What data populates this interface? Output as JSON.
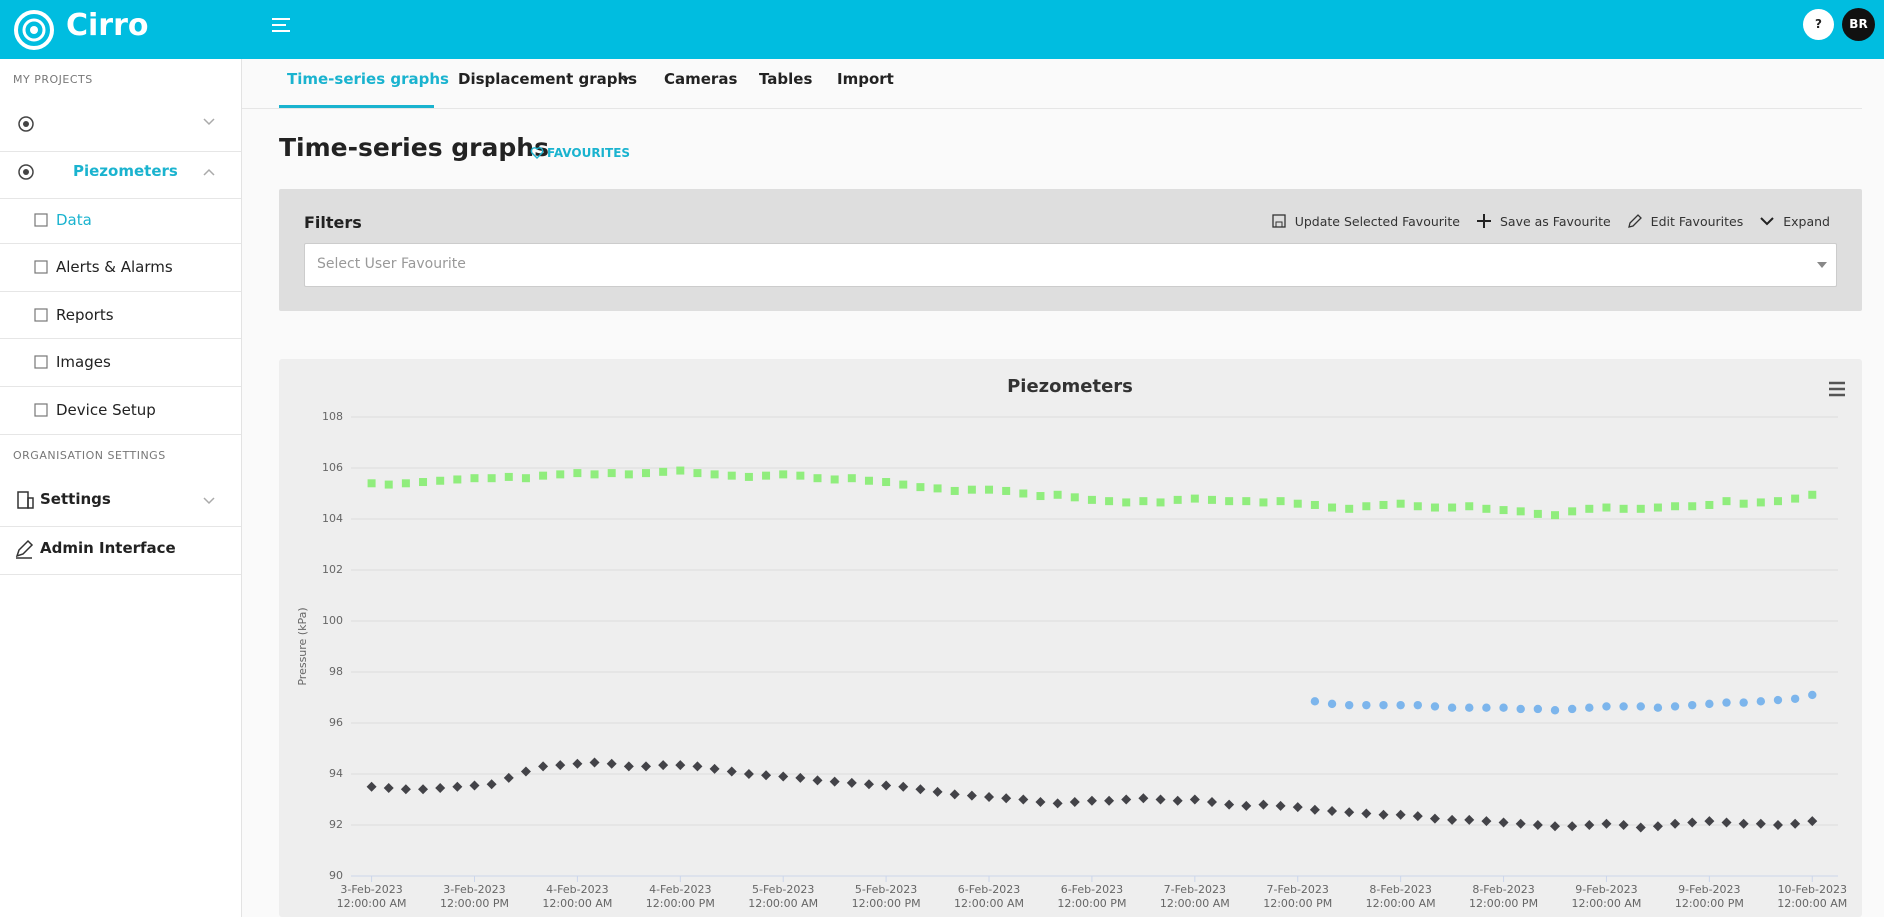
{
  "header": {
    "brand": "Cirro",
    "help": "?",
    "avatar": "BR"
  },
  "sidebar": {
    "projects_heading": "MY PROJECTS",
    "project": "Piezometers",
    "project_items": [
      "Data",
      "Alerts & Alarms",
      "Reports",
      "Images",
      "Device Setup"
    ],
    "org_heading": "ORGANISATION SETTINGS",
    "org_items": [
      "Settings",
      "Admin Interface"
    ]
  },
  "tabs": [
    "Time-series graphs",
    "Displacement graphs",
    "Cameras",
    "Tables",
    "Import"
  ],
  "page": {
    "title": "Time-series graphs",
    "favourites": "FAVOURITES"
  },
  "filters": {
    "title": "Filters",
    "actions": [
      "Update Selected Favourite",
      "Save as Favourite",
      "Edit Favourites",
      "Expand"
    ],
    "placeholder": "Select User Favourite"
  },
  "chart_data": {
    "type": "scatter",
    "title": "Piezometers",
    "y_label": "Pressure (kPa)",
    "xlim": [
      "2023-02-02T21:36",
      "2023-02-10T03:00"
    ],
    "xticks": [
      {
        "value": "2023-02-03T00:00",
        "label": "3-Feb-2023 12:00:00 AM"
      },
      {
        "value": "2023-02-03T12:00",
        "label": "3-Feb-2023 12:00:00 PM"
      },
      {
        "value": "2023-02-04T00:00",
        "label": "4-Feb-2023 12:00:00 AM"
      },
      {
        "value": "2023-02-04T12:00",
        "label": "4-Feb-2023 12:00:00 PM"
      },
      {
        "value": "2023-02-05T00:00",
        "label": "5-Feb-2023 12:00:00 AM"
      },
      {
        "value": "2023-02-05T12:00",
        "label": "5-Feb-2023 12:00:00 PM"
      },
      {
        "value": "2023-02-06T00:00",
        "label": "6-Feb-2023 12:00:00 AM"
      },
      {
        "value": "2023-02-06T12:00",
        "label": "6-Feb-2023 12:00:00 PM"
      },
      {
        "value": "2023-02-07T00:00",
        "label": "7-Feb-2023 12:00:00 AM"
      },
      {
        "value": "2023-02-07T12:00",
        "label": "7-Feb-2023 12:00:00 PM"
      },
      {
        "value": "2023-02-08T00:00",
        "label": "8-Feb-2023 12:00:00 AM"
      },
      {
        "value": "2023-02-08T12:00",
        "label": "8-Feb-2023 12:00:00 PM"
      },
      {
        "value": "2023-02-09T00:00",
        "label": "9-Feb-2023 12:00:00 AM"
      },
      {
        "value": "2023-02-09T12:00",
        "label": "9-Feb-2023 12:00:00 PM"
      },
      {
        "value": "2023-02-10T00:00",
        "label": "10-Feb-2023 12:00:00 AM"
      }
    ],
    "ylim": [
      90,
      108
    ],
    "yticks": [
      90,
      92,
      94,
      96,
      98,
      100,
      102,
      104,
      106,
      108
    ],
    "grid": true,
    "x": [
      "2023-02-03T00:00",
      "2023-02-03T02:00",
      "2023-02-03T04:00",
      "2023-02-03T06:00",
      "2023-02-03T08:00",
      "2023-02-03T10:00",
      "2023-02-03T12:00",
      "2023-02-03T14:00",
      "2023-02-03T16:00",
      "2023-02-03T18:00",
      "2023-02-03T20:00",
      "2023-02-03T22:00",
      "2023-02-04T00:00",
      "2023-02-04T02:00",
      "2023-02-04T04:00",
      "2023-02-04T06:00",
      "2023-02-04T08:00",
      "2023-02-04T10:00",
      "2023-02-04T12:00",
      "2023-02-04T14:00",
      "2023-02-04T16:00",
      "2023-02-04T18:00",
      "2023-02-04T20:00",
      "2023-02-04T22:00",
      "2023-02-05T00:00",
      "2023-02-05T02:00",
      "2023-02-05T04:00",
      "2023-02-05T06:00",
      "2023-02-05T08:00",
      "2023-02-05T10:00",
      "2023-02-05T12:00",
      "2023-02-05T14:00",
      "2023-02-05T16:00",
      "2023-02-05T18:00",
      "2023-02-05T20:00",
      "2023-02-05T22:00",
      "2023-02-06T00:00",
      "2023-02-06T02:00",
      "2023-02-06T04:00",
      "2023-02-06T06:00",
      "2023-02-06T08:00",
      "2023-02-06T10:00",
      "2023-02-06T12:00",
      "2023-02-06T14:00",
      "2023-02-06T16:00",
      "2023-02-06T18:00",
      "2023-02-06T20:00",
      "2023-02-06T22:00",
      "2023-02-07T00:00",
      "2023-02-07T02:00",
      "2023-02-07T04:00",
      "2023-02-07T06:00",
      "2023-02-07T08:00",
      "2023-02-07T10:00",
      "2023-02-07T12:00",
      "2023-02-07T14:00",
      "2023-02-07T16:00",
      "2023-02-07T18:00",
      "2023-02-07T20:00",
      "2023-02-07T22:00",
      "2023-02-08T00:00",
      "2023-02-08T02:00",
      "2023-02-08T04:00",
      "2023-02-08T06:00",
      "2023-02-08T08:00",
      "2023-02-08T10:00",
      "2023-02-08T12:00",
      "2023-02-08T14:00",
      "2023-02-08T16:00",
      "2023-02-08T18:00",
      "2023-02-08T20:00",
      "2023-02-08T22:00",
      "2023-02-09T00:00",
      "2023-02-09T02:00",
      "2023-02-09T04:00",
      "2023-02-09T06:00",
      "2023-02-09T08:00",
      "2023-02-09T10:00",
      "2023-02-09T12:00",
      "2023-02-09T14:00",
      "2023-02-09T16:00",
      "2023-02-09T18:00",
      "2023-02-09T20:00",
      "2023-02-09T22:00",
      "2023-02-10T00:00"
    ],
    "series": [
      {
        "color": "#90ed7d",
        "marker": "square",
        "values": [
          105.4,
          105.35,
          105.4,
          105.45,
          105.5,
          105.55,
          105.6,
          105.6,
          105.65,
          105.6,
          105.7,
          105.75,
          105.8,
          105.75,
          105.8,
          105.75,
          105.8,
          105.85,
          105.9,
          105.8,
          105.75,
          105.7,
          105.65,
          105.7,
          105.75,
          105.7,
          105.6,
          105.55,
          105.6,
          105.5,
          105.45,
          105.35,
          105.25,
          105.2,
          105.1,
          105.15,
          105.15,
          105.1,
          105.0,
          104.9,
          104.95,
          104.85,
          104.75,
          104.7,
          104.65,
          104.7,
          104.65,
          104.75,
          104.8,
          104.75,
          104.7,
          104.7,
          104.65,
          104.7,
          104.6,
          104.55,
          104.45,
          104.4,
          104.5,
          104.55,
          104.6,
          104.5,
          104.45,
          104.45,
          104.5,
          104.4,
          104.35,
          104.3,
          104.2,
          104.15,
          104.3,
          104.4,
          104.45,
          104.4,
          104.4,
          104.45,
          104.5,
          104.5,
          104.55,
          104.7,
          104.6,
          104.65,
          104.7,
          104.8,
          104.95
        ]
      },
      {
        "color": "#434348",
        "marker": "diamond",
        "values": [
          93.5,
          93.45,
          93.4,
          93.4,
          93.45,
          93.5,
          93.55,
          93.6,
          93.85,
          94.1,
          94.3,
          94.35,
          94.4,
          94.45,
          94.4,
          94.3,
          94.3,
          94.35,
          94.35,
          94.3,
          94.2,
          94.1,
          94.0,
          93.95,
          93.9,
          93.85,
          93.75,
          93.7,
          93.65,
          93.6,
          93.55,
          93.5,
          93.4,
          93.3,
          93.2,
          93.15,
          93.1,
          93.05,
          93.0,
          92.9,
          92.85,
          92.9,
          92.95,
          92.95,
          93.0,
          93.05,
          93.0,
          92.95,
          93.0,
          92.9,
          92.8,
          92.75,
          92.8,
          92.75,
          92.7,
          92.6,
          92.55,
          92.5,
          92.45,
          92.4,
          92.4,
          92.35,
          92.25,
          92.2,
          92.2,
          92.15,
          92.1,
          92.05,
          92.0,
          91.95,
          91.95,
          92.0,
          92.05,
          92.0,
          91.9,
          91.95,
          92.05,
          92.1,
          92.15,
          92.1,
          92.05,
          92.05,
          92.0,
          92.05,
          92.15
        ]
      },
      {
        "color": "#7cb5ec",
        "marker": "circle",
        "values": [
          null,
          null,
          null,
          null,
          null,
          null,
          null,
          null,
          null,
          null,
          null,
          null,
          null,
          null,
          null,
          null,
          null,
          null,
          null,
          null,
          null,
          null,
          null,
          null,
          null,
          null,
          null,
          null,
          null,
          null,
          null,
          null,
          null,
          null,
          null,
          null,
          null,
          null,
          null,
          null,
          null,
          null,
          null,
          null,
          null,
          null,
          null,
          null,
          null,
          null,
          null,
          null,
          null,
          null,
          null,
          96.85,
          96.75,
          96.7,
          96.7,
          96.7,
          96.7,
          96.7,
          96.65,
          96.6,
          96.6,
          96.6,
          96.6,
          96.55,
          96.55,
          96.5,
          96.55,
          96.6,
          96.65,
          96.65,
          96.65,
          96.6,
          96.65,
          96.7,
          96.75,
          96.8,
          96.8,
          96.85,
          96.9,
          96.95,
          97.1
        ]
      }
    ]
  }
}
